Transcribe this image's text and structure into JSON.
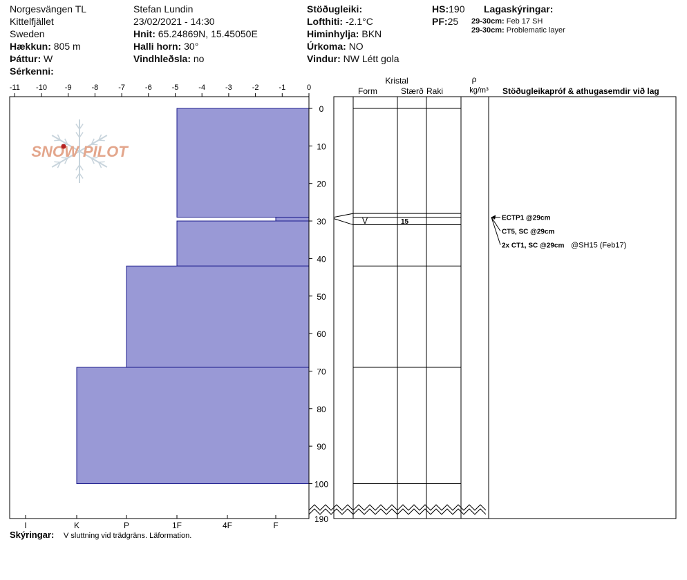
{
  "header": {
    "col1": [
      "Norgesvängen TL",
      "Kittelfjället",
      "Sweden"
    ],
    "elevation": {
      "label": "Hækkun:",
      "value": "805 m"
    },
    "aspect": {
      "label": "Þáttur:",
      "value": "W"
    },
    "features": {
      "label": "Sérkenni:",
      "value": ""
    },
    "observer": "Stefan Lundin",
    "datetime": "23/02/2021 - 14:30",
    "coords": {
      "label": "Hnit:",
      "value": "65.24869N, 15.45050E"
    },
    "slope": {
      "label": "Halli horn:",
      "value": "30°"
    },
    "wind_loading": {
      "label": "Vindhleðsla:",
      "value": "no"
    },
    "stability": {
      "label": "Stöðugleiki:",
      "value": ""
    },
    "air_temp": {
      "label": "Lofthiti:",
      "value": "-2.1°C"
    },
    "sky": {
      "label": "Himinhylja:",
      "value": "BKN"
    },
    "precip": {
      "label": "Úrkoma:",
      "value": "NO"
    },
    "wind": {
      "label": "Vindur:",
      "value": "NW Létt gola"
    },
    "hs": {
      "label": "HS:",
      "value": "190"
    },
    "pf": {
      "label": "PF:",
      "value": "25"
    },
    "layer_notes": {
      "title": "Lagaskýringar:",
      "items": [
        {
          "range": "29-30cm:",
          "text": "Feb 17 SH"
        },
        {
          "range": "29-30cm:",
          "text": "Problematic layer"
        }
      ]
    }
  },
  "columns": {
    "kristal": "Kristal",
    "form": "Form",
    "size": "Stærð",
    "wetness": "Raki",
    "rho": "ρ",
    "density_unit": "kg/m³",
    "tests": "Stöðugleikapróf & athugasemdir við lag"
  },
  "footer": {
    "label": "Skýringar:",
    "text": "V sluttning vid trädgräns. Läformation."
  },
  "logo_text": "SNOW PILOT",
  "colors": {
    "layer_fill": "#9999d6",
    "layer_stroke": "#1c1c8c",
    "logo": "#e3a68c"
  },
  "chart_data": {
    "type": "bar",
    "orientation": "horizontal",
    "temperature_axis": {
      "ticks": [
        "-11",
        "-10",
        "-9",
        "-8",
        "-7",
        "-6",
        "-5",
        "-4",
        "-3",
        "-2",
        "-1",
        "0"
      ],
      "range": [
        -11,
        0
      ]
    },
    "depth_axis": {
      "ticks": [
        "0",
        "10",
        "20",
        "30",
        "40",
        "50",
        "60",
        "70",
        "80",
        "90",
        "100",
        "190"
      ],
      "range_cm": [
        0,
        100
      ],
      "break_label": "190"
    },
    "hardness_axis": {
      "ticks": [
        "I",
        "K",
        "P",
        "1F",
        "4F",
        "F"
      ]
    },
    "layers": [
      {
        "top": 0,
        "bottom": 29,
        "hardness": "1F"
      },
      {
        "top": 29,
        "bottom": 30,
        "hardness": "F"
      },
      {
        "top": 30,
        "bottom": 42,
        "hardness": "1F"
      },
      {
        "top": 42,
        "bottom": 69,
        "hardness": "P"
      },
      {
        "top": 69,
        "bottom": 100,
        "hardness": "K"
      }
    ],
    "crystal_layers": [
      {
        "top": 29,
        "bottom": 31,
        "form": "V",
        "size": "15"
      }
    ],
    "layer_lines": [
      0,
      28,
      29,
      31,
      42,
      69,
      100
    ],
    "tests": [
      {
        "depth": 29,
        "text": "ECTP1 @29cm"
      },
      {
        "depth": 29,
        "text": "CT5, SC @29cm"
      },
      {
        "depth": 29,
        "text": "2x CT1, SC @29cm",
        "note": "@SH15 (Feb17)"
      }
    ]
  }
}
